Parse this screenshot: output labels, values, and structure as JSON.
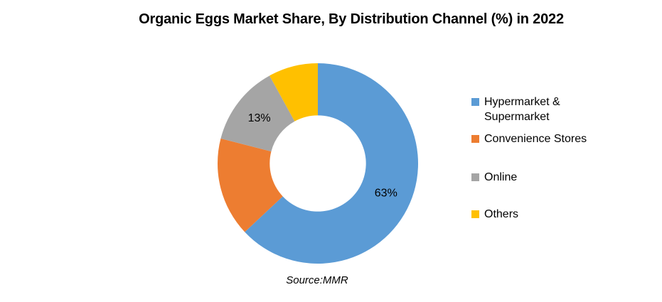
{
  "title": "Organic Eggs Market Share, By Distribution Channel (%) in 2022",
  "source_note": "Source:MMR",
  "chart_data": {
    "type": "pie",
    "subtype": "donut",
    "title": "Organic Eggs Market Share, By Distribution Channel (%) in 2022",
    "unit": "%",
    "categories": [
      "Hypermarket & Supermarket",
      "Convenience Stores",
      "Online",
      "Others"
    ],
    "values": [
      63,
      16,
      13,
      8
    ],
    "data_labels_shown": [
      "63%",
      "",
      "13%",
      ""
    ],
    "colors": [
      "#5B9BD5",
      "#ED7D31",
      "#A5A5A5",
      "#FFC000"
    ],
    "start_angle_deg": 0,
    "direction": "clockwise",
    "hole_ratio": 0.48,
    "grid": false,
    "legend_position": "right",
    "legend": [
      {
        "label": "Hypermarket & Supermarket",
        "color": "#5B9BD5"
      },
      {
        "label": "Convenience Stores",
        "color": "#ED7D31"
      },
      {
        "label": "Online",
        "color": "#A5A5A5"
      },
      {
        "label": "Others",
        "color": "#FFC000"
      }
    ],
    "source": "Source:MMR"
  }
}
